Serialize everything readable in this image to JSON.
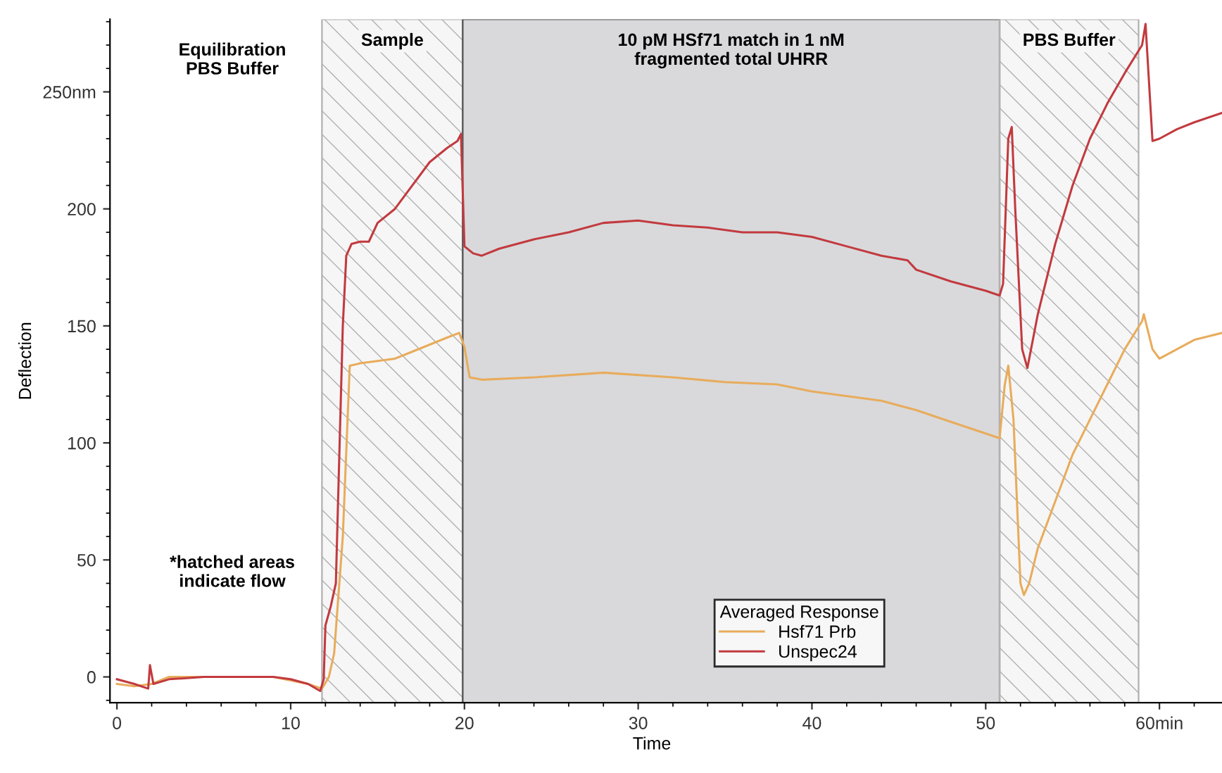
{
  "chart_data": {
    "type": "line",
    "xlabel": "Time",
    "ylabel": "Deflection",
    "legend_title": "Averaged Response",
    "legend": "bottom",
    "grid": false,
    "xlim": [
      -0.4,
      63.6
    ],
    "ylim": [
      -11,
      281
    ],
    "xticks": [
      0,
      10,
      20,
      30,
      40,
      50,
      {
        "value": 60,
        "label": "60min"
      }
    ],
    "yticks": [
      0,
      50,
      100,
      150,
      {
        "value": 200,
        "label": "200"
      },
      {
        "value": 250,
        "label": "250nm"
      }
    ],
    "series": [
      {
        "name": "Hsf71 Prb",
        "color": "#e8ac5c",
        "x": [
          0,
          1,
          2,
          3,
          5,
          7,
          9,
          11,
          11.8,
          12.2,
          12.5,
          13,
          13.4,
          14,
          15,
          16,
          17,
          18,
          19,
          19.7,
          20,
          20.3,
          21,
          24,
          28,
          32,
          35,
          38,
          40,
          44,
          46,
          48,
          50,
          50.8,
          51.1,
          51.3,
          51.6,
          52,
          52.2,
          52.5,
          53,
          54,
          55,
          56,
          57,
          58,
          59,
          59.1,
          59.6,
          60,
          61,
          62,
          63.6
        ],
        "values": [
          -3,
          -4,
          -3,
          0,
          0,
          0,
          0,
          -3,
          -5,
          0,
          10,
          60,
          133,
          134,
          135,
          136,
          139,
          142,
          145,
          147,
          141,
          128,
          127,
          128,
          130,
          128,
          126,
          125,
          122,
          118,
          114,
          109,
          104,
          102,
          125,
          133,
          110,
          40,
          35,
          40,
          55,
          75,
          95,
          110,
          125,
          140,
          152,
          155,
          140,
          136,
          140,
          144,
          147
        ]
      },
      {
        "name": "Unspec24",
        "color": "#c23a3f",
        "x": [
          0,
          1,
          1.8,
          1.9,
          2.1,
          3,
          5,
          7,
          9,
          10,
          11,
          11.7,
          11.9,
          12,
          12.3,
          12.6,
          13,
          13.2,
          13.5,
          14,
          14.5,
          15,
          16,
          17,
          18,
          19,
          19.6,
          19.8,
          20,
          20.5,
          21,
          22,
          24,
          26,
          28,
          30,
          32,
          34,
          36,
          38,
          40,
          42,
          44,
          45.5,
          46,
          48,
          50,
          50.8,
          51,
          51.3,
          51.5,
          51.7,
          52.1,
          52.4,
          53,
          54,
          55,
          56,
          57,
          58,
          59,
          59.2,
          59.6,
          60,
          61,
          62,
          63.6
        ],
        "values": [
          -1,
          -3,
          -5,
          5,
          -3,
          -1,
          0,
          0,
          0,
          -1,
          -3,
          -6,
          -1,
          22,
          30,
          40,
          150,
          180,
          185,
          186,
          186,
          194,
          200,
          210,
          220,
          226,
          229,
          232,
          184,
          181,
          180,
          183,
          187,
          190,
          194,
          195,
          193,
          192,
          190,
          190,
          188,
          184,
          180,
          178,
          174,
          169,
          165,
          163,
          168,
          230,
          235,
          200,
          140,
          132,
          155,
          185,
          210,
          230,
          245,
          258,
          270,
          279,
          229,
          230,
          234,
          237,
          241
        ]
      }
    ],
    "bands": [
      {
        "axis": "x",
        "from": 11.8,
        "to": 19.9,
        "label": "Sample",
        "color": "#f6f6f6"
      },
      {
        "axis": "x",
        "from": 19.9,
        "to": 50.8,
        "label": "10 pM HSf71 match in 1 nM\nfragmented total UHRR",
        "color": "#d9d9db"
      },
      {
        "axis": "x",
        "from": 50.8,
        "to": 58.8,
        "label": "PBS Buffer",
        "color": "#f6f6f6"
      }
    ],
    "annotations": [
      "Equilibration\nPBS Buffer",
      "*hatched areas\nindicate flow"
    ]
  }
}
